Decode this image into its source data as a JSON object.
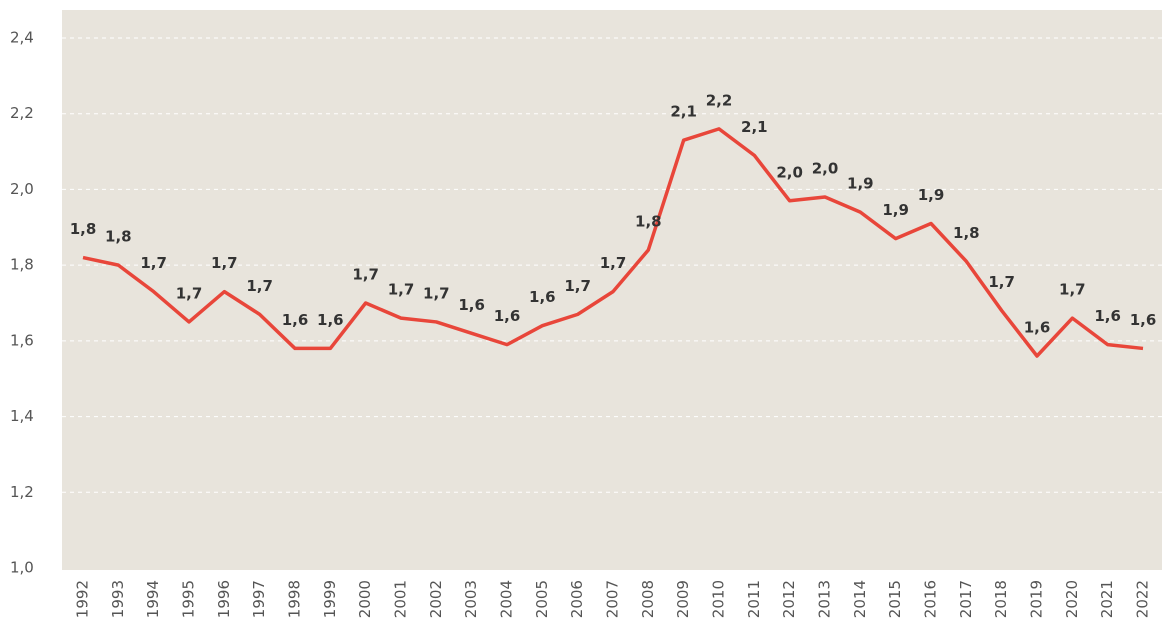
{
  "chart_data": {
    "type": "line",
    "categories": [
      "1992",
      "1993",
      "1994",
      "1995",
      "1996",
      "1997",
      "1998",
      "1999",
      "2000",
      "2001",
      "2002",
      "2003",
      "2004",
      "2005",
      "2006",
      "2007",
      "2008",
      "2009",
      "2010",
      "2011",
      "2012",
      "2013",
      "2014",
      "2015",
      "2016",
      "2017",
      "2018",
      "2019",
      "2020",
      "2021",
      "2022"
    ],
    "series": [
      {
        "color": "#e8463a",
        "values": [
          1.82,
          1.8,
          1.73,
          1.65,
          1.73,
          1.67,
          1.58,
          1.58,
          1.7,
          1.66,
          1.65,
          1.62,
          1.59,
          1.64,
          1.67,
          1.73,
          1.84,
          2.13,
          2.16,
          2.09,
          1.97,
          1.98,
          1.94,
          1.87,
          1.91,
          1.81,
          1.68,
          1.56,
          1.66,
          1.59,
          1.58
        ],
        "value_labels": [
          "1,8",
          "1,8",
          "1,7",
          "1,7",
          "1,7",
          "1,7",
          "1,6",
          "1,6",
          "1,7",
          "1,7",
          "1,7",
          "1,6",
          "1,6",
          "1,6",
          "1,7",
          "1,7",
          "1,8",
          "2,1",
          "2,2",
          "2,1",
          "2,0",
          "2,0",
          "1,9",
          "1,9",
          "1,9",
          "1,8",
          "1,7",
          "1,6",
          "1,7",
          "1,6",
          "1,6"
        ]
      }
    ],
    "ylim": [
      1.0,
      2.4
    ],
    "yticks": [
      {
        "value": 1.0,
        "label": "1,0"
      },
      {
        "value": 1.2,
        "label": "1,2"
      },
      {
        "value": 1.4,
        "label": "1,4"
      },
      {
        "value": 1.6,
        "label": "1,6"
      },
      {
        "value": 1.8,
        "label": "1,8"
      },
      {
        "value": 2.0,
        "label": "2,0"
      },
      {
        "value": 2.2,
        "label": "2,2"
      },
      {
        "value": 2.4,
        "label": "2,4"
      }
    ],
    "grid": true
  }
}
